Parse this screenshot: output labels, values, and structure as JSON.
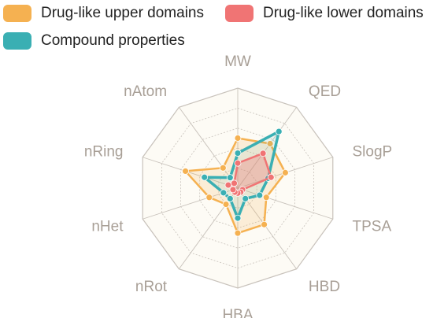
{
  "chart_data": {
    "type": "radar",
    "indicators": [
      "MW",
      "QED",
      "SlogP",
      "TPSA",
      "HBD",
      "HBA",
      "nRot",
      "nHet",
      "nRing",
      "nAtom"
    ],
    "max": 10,
    "rings": 5,
    "series": [
      {
        "name": "Drug-like upper domains",
        "color": "#f5b151",
        "fill": "rgba(245,177,81,0.18)",
        "values": [
          5.0,
          5.5,
          5.0,
          3.0,
          4.5,
          4.5,
          2.0,
          3.0,
          5.5,
          2.5
        ]
      },
      {
        "name": "Drug-like lower domains",
        "color": "#f07474",
        "fill": "rgba(240,116,116,0.32)",
        "values": [
          2.5,
          4.3,
          3.5,
          0.5,
          0.5,
          0.5,
          0.5,
          0.5,
          1.0,
          0.6
        ]
      },
      {
        "name": "Compound properties",
        "color": "#3aafb3",
        "fill": "rgba(58,175,179,0.10)",
        "values": [
          3.5,
          7.0,
          3.2,
          2.3,
          1.3,
          3.0,
          1.3,
          1.5,
          3.5,
          1.3
        ]
      }
    ],
    "grid_line_color": "#c8c2bb",
    "background_color": "#fdfbf5"
  }
}
